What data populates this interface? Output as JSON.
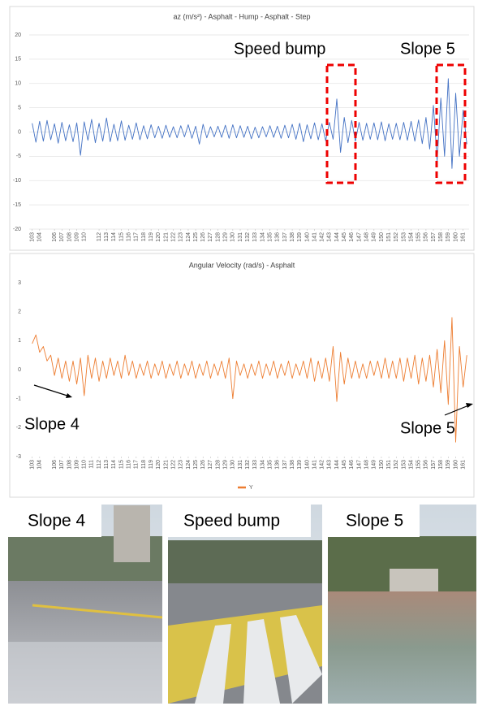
{
  "chart_data": [
    {
      "type": "line",
      "title": "az (m/s²) - Asphalt - Hump - Asphalt - Step",
      "xlim": [
        102.6,
        161.8
      ],
      "xticks": [
        103,
        104,
        106,
        107,
        108,
        109,
        110,
        112,
        113,
        114,
        115,
        116,
        117,
        118,
        119,
        120,
        121,
        122,
        123,
        124,
        125,
        126,
        127,
        128,
        129,
        130,
        131,
        132,
        133,
        134,
        135,
        136,
        137,
        138,
        139,
        140,
        141,
        142,
        143,
        144,
        145,
        146,
        147,
        148,
        149,
        150,
        151,
        152,
        153,
        154,
        155,
        156,
        157,
        158,
        159,
        160,
        161
      ],
      "ylim": [
        -20,
        20
      ],
      "yticks": [
        -20,
        -15,
        -10,
        -5,
        0,
        5,
        10,
        15,
        20
      ],
      "grid": true,
      "annotations": [
        "Speed bump",
        "Slope 5"
      ],
      "x": [
        103,
        103.5,
        104,
        104.5,
        105,
        105.5,
        106,
        106.5,
        107,
        107.5,
        108,
        108.5,
        109,
        109.5,
        110,
        110.5,
        111,
        111.5,
        112,
        112.5,
        113,
        113.5,
        114,
        114.5,
        115,
        115.5,
        116,
        116.5,
        117,
        117.5,
        118,
        118.5,
        119,
        119.5,
        120,
        120.5,
        121,
        121.5,
        122,
        122.5,
        123,
        123.5,
        124,
        124.5,
        125,
        125.5,
        126,
        126.5,
        127,
        127.5,
        128,
        128.5,
        129,
        129.5,
        130,
        130.5,
        131,
        131.5,
        132,
        132.5,
        133,
        133.5,
        134,
        134.5,
        135,
        135.5,
        136,
        136.5,
        137,
        137.5,
        138,
        138.5,
        139,
        139.5,
        140,
        140.5,
        141,
        141.5,
        142,
        142.5,
        143,
        143.5,
        144,
        144.5,
        145,
        145.5,
        146,
        146.5,
        147,
        147.5,
        148,
        148.5,
        149,
        149.5,
        150,
        150.5,
        151,
        151.5,
        152,
        152.5,
        153,
        153.5,
        154,
        154.5,
        155,
        155.5,
        156,
        156.5,
        157,
        157.5,
        158,
        158.5,
        159,
        159.5,
        160,
        160.5,
        161,
        161.5
      ],
      "series": [
        {
          "color": "#4472c4",
          "values": [
            1.8,
            -2.1,
            2.2,
            -1.9,
            2.4,
            -1.6,
            1.7,
            -2.3,
            2.0,
            -1.8,
            1.5,
            -2.0,
            1.9,
            -4.8,
            2.1,
            -1.7,
            2.6,
            -2.2,
            1.8,
            -1.9,
            2.9,
            -2.0,
            1.6,
            -1.8,
            2.3,
            -1.7,
            1.4,
            -1.5,
            1.9,
            -1.6,
            1.3,
            -1.4,
            1.5,
            -1.2,
            1.2,
            -1.3,
            1.4,
            -1.1,
            1.1,
            -1.2,
            1.3,
            -1.0,
            1.5,
            -1.3,
            1.2,
            -2.5,
            1.6,
            -1.2,
            1.1,
            -1.0,
            1.2,
            -1.1,
            1.4,
            -1.3,
            1.5,
            -1.2,
            1.3,
            -1.1,
            1.2,
            -1.4,
            1.0,
            -1.2,
            1.1,
            -1.0,
            1.3,
            -1.1,
            1.2,
            -1.3,
            1.4,
            -1.2,
            1.6,
            -1.5,
            1.8,
            -2.0,
            1.5,
            -1.4,
            1.9,
            -1.6,
            1.7,
            -1.8,
            2.0,
            -1.5,
            6.8,
            -4.2,
            3.0,
            -2.2,
            2.4,
            -1.9,
            2.0,
            -1.7,
            1.8,
            -1.5,
            1.9,
            -1.6,
            2.1,
            -1.8,
            1.7,
            -1.5,
            1.8,
            -1.6,
            2.0,
            -1.7,
            2.2,
            -1.9,
            2.5,
            -2.4,
            3.0,
            -3.5,
            5.5,
            -6.0,
            7.0,
            -5.0,
            11.0,
            -7.5,
            8.0,
            -5.0,
            4.5,
            -2.5
          ]
        }
      ]
    },
    {
      "type": "line",
      "title": "Angular Velocity (rad/s) - Asphalt",
      "xlim": [
        102.6,
        161.8
      ],
      "xticks": [
        103,
        104,
        106,
        107,
        108,
        109,
        110,
        111,
        112,
        113,
        114,
        115,
        116,
        117,
        118,
        119,
        120,
        121,
        122,
        123,
        124,
        125,
        126,
        127,
        128,
        129,
        130,
        131,
        132,
        133,
        134,
        135,
        136,
        137,
        138,
        139,
        140,
        141,
        142,
        143,
        144,
        145,
        146,
        147,
        148,
        149,
        150,
        151,
        152,
        153,
        154,
        155,
        156,
        157,
        158,
        159,
        160,
        161
      ],
      "ylim": [
        -3,
        3
      ],
      "yticks": [
        -3,
        -2,
        -1,
        0,
        1,
        2,
        3
      ],
      "grid": false,
      "legend": "bottom",
      "annotations": [
        "Slope 4",
        "Slope 5"
      ],
      "x": [
        103,
        103.5,
        104,
        104.5,
        105,
        105.5,
        106,
        106.5,
        107,
        107.5,
        108,
        108.5,
        109,
        109.5,
        110,
        110.5,
        111,
        111.5,
        112,
        112.5,
        113,
        113.5,
        114,
        114.5,
        115,
        115.5,
        116,
        116.5,
        117,
        117.5,
        118,
        118.5,
        119,
        119.5,
        120,
        120.5,
        121,
        121.5,
        122,
        122.5,
        123,
        123.5,
        124,
        124.5,
        125,
        125.5,
        126,
        126.5,
        127,
        127.5,
        128,
        128.5,
        129,
        129.5,
        130,
        130.5,
        131,
        131.5,
        132,
        132.5,
        133,
        133.5,
        134,
        134.5,
        135,
        135.5,
        136,
        136.5,
        137,
        137.5,
        138,
        138.5,
        139,
        139.5,
        140,
        140.5,
        141,
        141.5,
        142,
        142.5,
        143,
        143.5,
        144,
        144.5,
        145,
        145.5,
        146,
        146.5,
        147,
        147.5,
        148,
        148.5,
        149,
        149.5,
        150,
        150.5,
        151,
        151.5,
        152,
        152.5,
        153,
        153.5,
        154,
        154.5,
        155,
        155.5,
        156,
        156.5,
        157,
        157.5,
        158,
        158.5,
        159,
        159.5,
        160,
        160.5,
        161,
        161.5
      ],
      "series": [
        {
          "name": "Y",
          "color": "#ed7d31",
          "values": [
            0.9,
            1.2,
            0.6,
            0.8,
            0.3,
            0.5,
            -0.2,
            0.4,
            -0.3,
            0.3,
            -0.4,
            0.3,
            -0.5,
            0.4,
            -0.9,
            0.5,
            -0.3,
            0.4,
            -0.4,
            0.3,
            -0.3,
            0.4,
            -0.2,
            0.3,
            -0.3,
            0.5,
            -0.2,
            0.3,
            -0.3,
            0.2,
            -0.2,
            0.3,
            -0.3,
            0.2,
            -0.2,
            0.3,
            -0.3,
            0.2,
            -0.2,
            0.3,
            -0.3,
            0.2,
            -0.2,
            0.3,
            -0.3,
            0.2,
            -0.2,
            0.3,
            -0.3,
            0.2,
            -0.2,
            0.3,
            -0.3,
            0.4,
            -1.0,
            0.3,
            -0.2,
            0.2,
            -0.3,
            0.2,
            -0.2,
            0.3,
            -0.3,
            0.2,
            -0.2,
            0.3,
            -0.3,
            0.2,
            -0.2,
            0.3,
            -0.3,
            0.2,
            -0.2,
            0.3,
            -0.3,
            0.4,
            -0.4,
            0.3,
            -0.3,
            0.4,
            -0.4,
            0.8,
            -1.1,
            0.6,
            -0.5,
            0.4,
            -0.3,
            0.3,
            -0.3,
            0.2,
            -0.3,
            0.3,
            -0.2,
            0.3,
            -0.3,
            0.4,
            -0.3,
            0.3,
            -0.3,
            0.4,
            -0.4,
            0.4,
            -0.3,
            0.5,
            -0.5,
            0.4,
            -0.4,
            0.5,
            -0.6,
            0.7,
            -0.8,
            1.0,
            -1.2,
            1.8,
            -2.5,
            0.8,
            -0.6,
            0.5
          ]
        }
      ]
    }
  ],
  "photos": [
    {
      "label": "Slope 4"
    },
    {
      "label": "Speed bump"
    },
    {
      "label": "Slope 5"
    }
  ]
}
